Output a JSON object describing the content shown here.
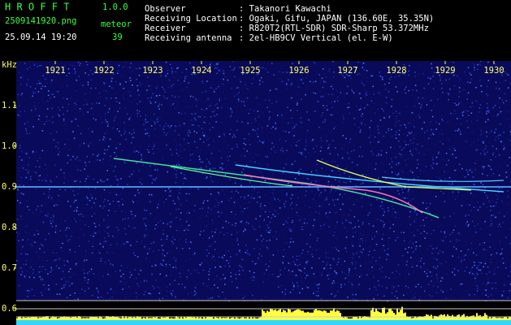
{
  "header": {
    "app": "H R O F F T",
    "version": "1.0.0",
    "file": "2509141920.png",
    "count_label": "meteor",
    "count": "39",
    "datetime": "25.09.14 19:20",
    "info": [
      {
        "label": "Observer",
        "value": ": Takanori Kawachi"
      },
      {
        "label": "Receiving Location",
        "value": ": Ogaki, Gifu, JAPAN (136.60E, 35.35N)"
      },
      {
        "label": "Receiver",
        "value": ": R820T2(RTL-SDR) SDR-Sharp 53.372MHz"
      },
      {
        "label": "Receiving antenna",
        "value": ": 2el-HB9CV Vertical (el. E-W)"
      }
    ]
  },
  "chart_data": {
    "type": "spectrogram",
    "y_label": "kHz",
    "xlim": [
      1920.2,
      1930.3
    ],
    "xticks": [
      1921,
      1922,
      1923,
      1924,
      1925,
      1926,
      1927,
      1928,
      1929,
      1930
    ],
    "ylim": [
      0.58,
      1.21
    ],
    "yticks": [
      0.6,
      0.7,
      0.8,
      0.9,
      {
        "value": 1,
        "label": "1.0"
      },
      1.1
    ]
  }
}
